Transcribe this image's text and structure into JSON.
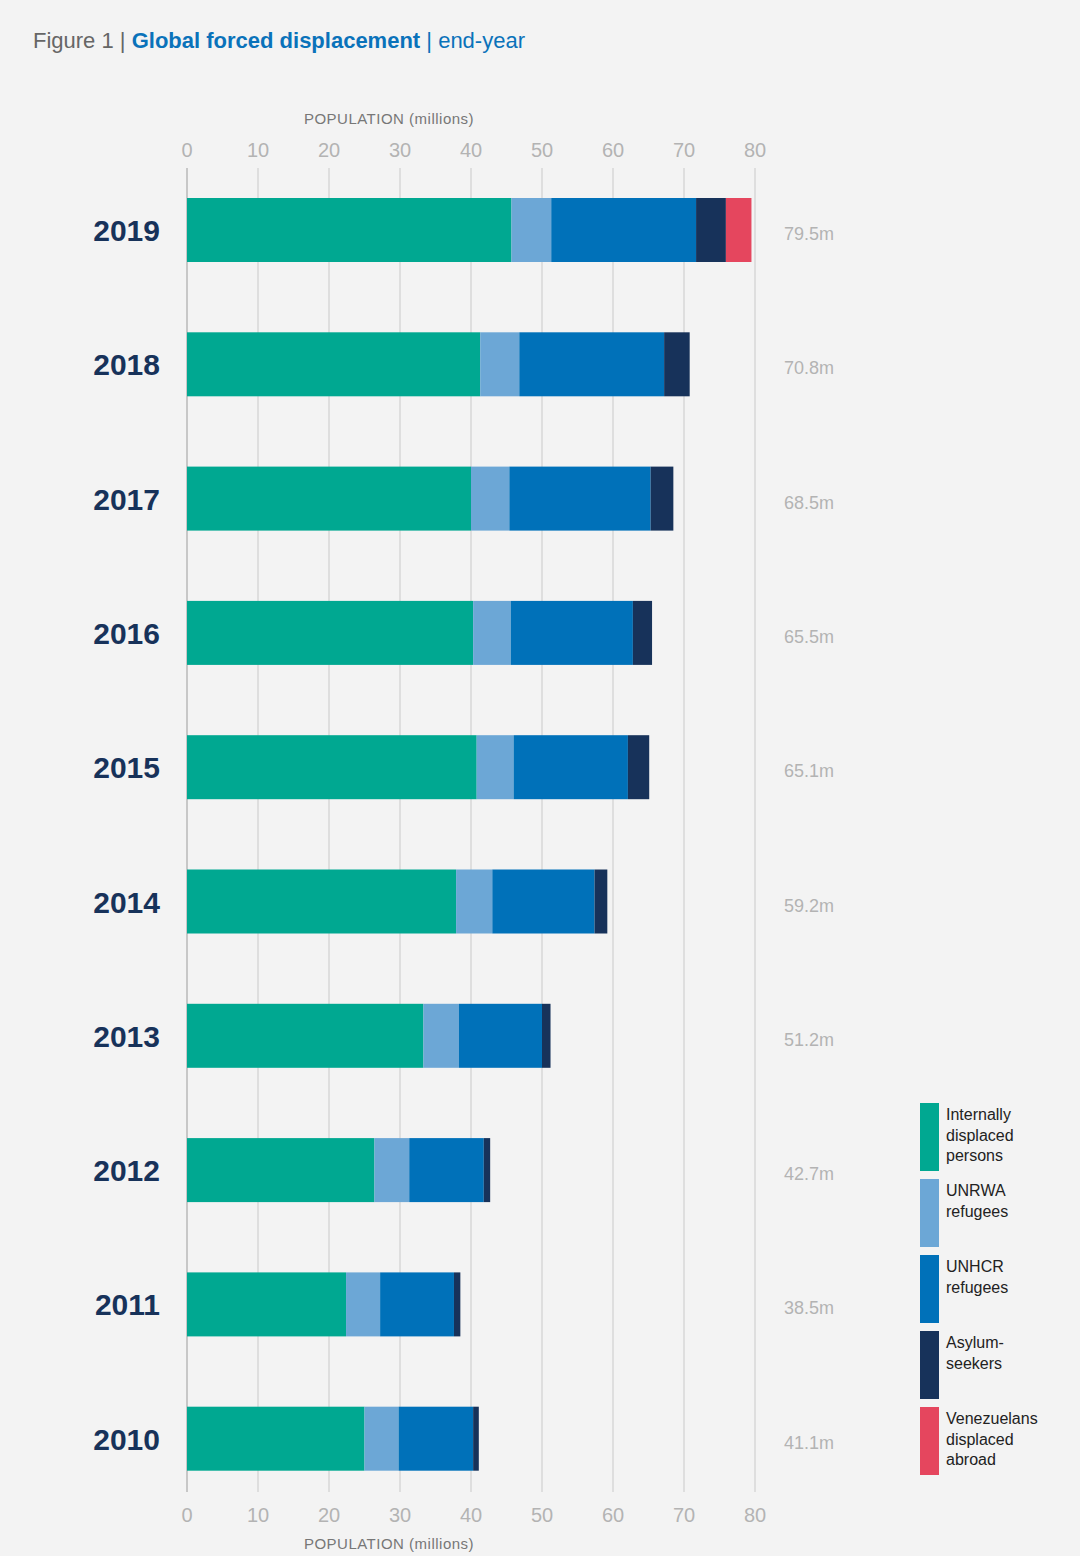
{
  "chart_data": {
    "type": "bar",
    "orientation": "horizontal",
    "stacked": true,
    "grid": true,
    "figure_label": "Figure 1 |",
    "title": "Global forced displacement",
    "subtitle": "| end-year",
    "x_label": "POPULATION (millions)",
    "categories": [
      "2019",
      "2018",
      "2017",
      "2016",
      "2015",
      "2014",
      "2013",
      "2012",
      "2011",
      "2010"
    ],
    "total_labels": [
      "79.5m",
      "70.8m",
      "68.5m",
      "65.5m",
      "65.1m",
      "59.2m",
      "51.2m",
      "42.7m",
      "38.5m",
      "41.1m"
    ],
    "xlim": [
      0,
      80
    ],
    "xticks": [
      0,
      10,
      20,
      30,
      40,
      50,
      60,
      70,
      80
    ],
    "legend": "bottom-right",
    "series": [
      {
        "name": "Internally displaced persons",
        "color": "#00a891",
        "values": [
          45.7,
          41.3,
          40.0,
          40.3,
          40.8,
          37.9,
          33.3,
          26.4,
          22.4,
          25.0
        ]
      },
      {
        "name": "UNRWA refugees",
        "color": "#6ca7d6",
        "values": [
          5.6,
          5.5,
          5.4,
          5.3,
          5.2,
          5.1,
          5.0,
          4.9,
          4.8,
          4.8
        ]
      },
      {
        "name": "UNHCR refugees",
        "color": "#0071b9",
        "values": [
          20.4,
          20.4,
          19.9,
          17.2,
          16.1,
          14.4,
          11.7,
          10.5,
          10.4,
          10.5
        ]
      },
      {
        "name": "Asylum-seekers",
        "color": "#17325a",
        "values": [
          4.2,
          3.6,
          3.2,
          2.7,
          3.0,
          1.8,
          1.2,
          0.9,
          0.9,
          0.8
        ]
      },
      {
        "name": "Venezuelans displaced abroad",
        "color": "#e5465e",
        "values": [
          3.6,
          null,
          null,
          null,
          null,
          null,
          null,
          null,
          null,
          null
        ]
      }
    ]
  }
}
